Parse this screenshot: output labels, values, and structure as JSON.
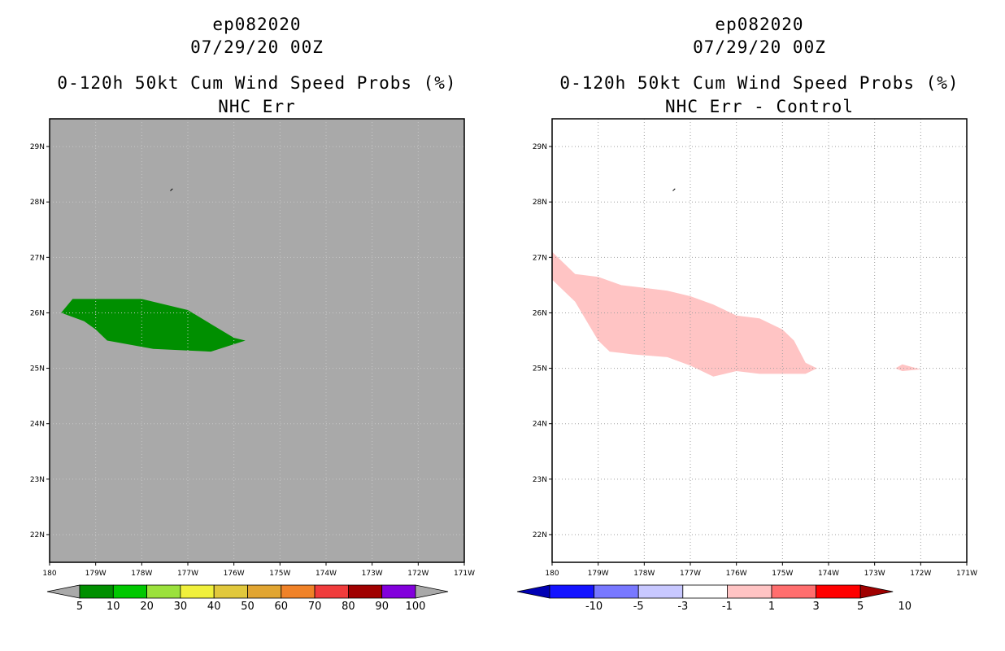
{
  "left_panel": {
    "title_line1": "ep082020",
    "title_line2": "07/29/20 00Z",
    "title_line3": "0-120h 50kt Cum Wind Speed Probs (%)",
    "title_line4": "NHC Err",
    "background_color": "#a9a9a9",
    "filled_region": {
      "color": "#008f00",
      "label": "5-10%"
    },
    "colorbar": {
      "colors": [
        "#008f00",
        "#00c800",
        "#9be13c",
        "#f0f03c",
        "#e1c83c",
        "#e1a532",
        "#f08228",
        "#f03c3c",
        "#a00000",
        "#8200dc"
      ],
      "end_color": "#a9a9a9",
      "labels": [
        "5",
        "10",
        "20",
        "30",
        "40",
        "50",
        "60",
        "70",
        "80",
        "90",
        "100"
      ]
    }
  },
  "right_panel": {
    "title_line1": "ep082020",
    "title_line2": "07/29/20 00Z",
    "title_line3": "0-120h 50kt Cum Wind Speed Probs (%)",
    "title_line4": "NHC Err - Control",
    "background_color": "#ffffff",
    "filled_region": {
      "color": "#ffc4c4",
      "label": "1-3"
    },
    "colorbar": {
      "colors": [
        "#0000b4",
        "#1414ff",
        "#7878ff",
        "#c8c8ff",
        "#ffffff",
        "#ffc4c4",
        "#ff6e6e",
        "#ff0000",
        "#a00000"
      ],
      "labels": [
        "-10",
        "-5",
        "-3",
        "-1",
        "1",
        "3",
        "5",
        "10"
      ]
    }
  },
  "axes": {
    "lon_labels": [
      "180",
      "179W",
      "178W",
      "177W",
      "176W",
      "175W",
      "174W",
      "173W",
      "172W",
      "171W"
    ],
    "lat_labels": [
      "29N",
      "28N",
      "27N",
      "26N",
      "25N",
      "24N",
      "23N",
      "22N"
    ]
  },
  "chart_data": [
    {
      "type": "map-contour",
      "title": "0-120h 50kt Cum Wind Speed Probs (%) NHC Err",
      "x_range_lon": [
        -180,
        -171
      ],
      "y_range_lat": [
        21.5,
        29.5
      ],
      "regions": [
        {
          "level": "5-10%",
          "polygon_lonlat": [
            [
              -179.75,
              26.0
            ],
            [
              -179.5,
              26.25
            ],
            [
              -178.0,
              26.25
            ],
            [
              -177.0,
              26.05
            ],
            [
              -176.5,
              25.8
            ],
            [
              -176.0,
              25.55
            ],
            [
              -175.75,
              25.5
            ],
            [
              -176.5,
              25.3
            ],
            [
              -177.75,
              25.35
            ],
            [
              -178.75,
              25.5
            ],
            [
              -179.0,
              25.7
            ],
            [
              -179.25,
              25.85
            ]
          ]
        }
      ]
    },
    {
      "type": "map-contour",
      "title": "0-120h 50kt Cum Wind Speed Probs (%) NHC Err - Control",
      "x_range_lon": [
        -180,
        -171
      ],
      "y_range_lat": [
        21.5,
        29.5
      ],
      "regions": [
        {
          "level": "1-3",
          "polygon_lonlat": [
            [
              -180.0,
              27.1
            ],
            [
              -179.5,
              26.7
            ],
            [
              -179.0,
              26.65
            ],
            [
              -178.5,
              26.5
            ],
            [
              -178.0,
              26.45
            ],
            [
              -177.5,
              26.4
            ],
            [
              -177.0,
              26.3
            ],
            [
              -176.5,
              26.15
            ],
            [
              -176.0,
              25.95
            ],
            [
              -175.5,
              25.9
            ],
            [
              -175.0,
              25.7
            ],
            [
              -174.75,
              25.5
            ],
            [
              -174.5,
              25.1
            ],
            [
              -174.25,
              25.0
            ],
            [
              -174.5,
              24.9
            ],
            [
              -175.5,
              24.9
            ],
            [
              -176.0,
              24.95
            ],
            [
              -176.5,
              24.85
            ],
            [
              -177.0,
              25.05
            ],
            [
              -177.5,
              25.2
            ],
            [
              -178.25,
              25.25
            ],
            [
              -178.75,
              25.3
            ],
            [
              -179.0,
              25.5
            ],
            [
              -179.5,
              26.2
            ],
            [
              -180.0,
              26.6
            ]
          ]
        },
        {
          "level": "1-3",
          "polygon_lonlat": [
            [
              -172.55,
              25.0
            ],
            [
              -172.4,
              25.07
            ],
            [
              -172.0,
              24.98
            ],
            [
              -172.4,
              24.95
            ]
          ]
        }
      ]
    }
  ]
}
